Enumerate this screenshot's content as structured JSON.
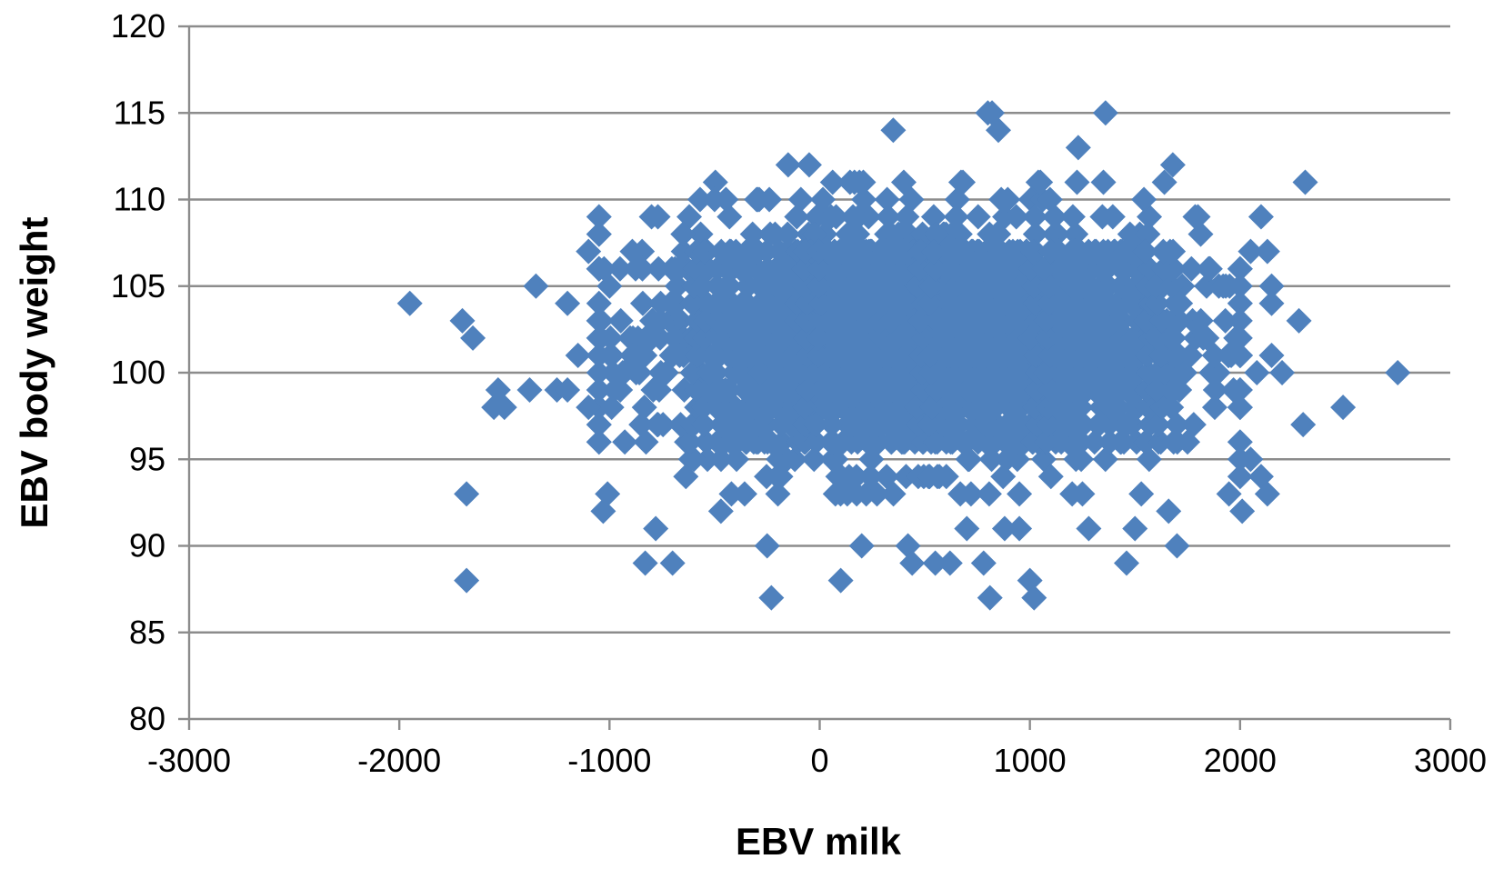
{
  "chart_data": {
    "type": "scatter",
    "title": "",
    "xlabel": "EBV milk",
    "ylabel": "EBV body weight",
    "xlim": [
      -3000,
      3000
    ],
    "ylim": [
      80,
      120
    ],
    "x_ticks": [
      -3000,
      -2000,
      -1000,
      0,
      1000,
      2000,
      3000
    ],
    "y_ticks": [
      80,
      85,
      90,
      95,
      100,
      105,
      110,
      115,
      120
    ],
    "grid": "horizontal",
    "legend": "none",
    "marker": "diamond",
    "marker_color": "#4f81bd",
    "point_count": 2000,
    "core_cloud": {
      "x_range": [
        -900,
        1850
      ],
      "y_range": [
        94,
        110
      ]
    },
    "outlier_points": [
      {
        "x": -1950,
        "y": 104
      },
      {
        "x": -1700,
        "y": 103
      },
      {
        "x": -1650,
        "y": 102
      },
      {
        "x": -1680,
        "y": 93
      },
      {
        "x": -1680,
        "y": 88
      },
      {
        "x": -1550,
        "y": 98
      },
      {
        "x": -1530,
        "y": 99
      },
      {
        "x": -1500,
        "y": 98
      },
      {
        "x": -1380,
        "y": 99
      },
      {
        "x": -1350,
        "y": 105
      },
      {
        "x": -1250,
        "y": 99
      },
      {
        "x": -1200,
        "y": 99
      },
      {
        "x": -1200,
        "y": 104
      },
      {
        "x": -1100,
        "y": 107
      },
      {
        "x": -1150,
        "y": 101
      },
      {
        "x": -1100,
        "y": 98
      },
      {
        "x": -1030,
        "y": 92
      },
      {
        "x": -1050,
        "y": 96
      },
      {
        "x": -1000,
        "y": 105
      },
      {
        "x": -950,
        "y": 106
      },
      {
        "x": -930,
        "y": 100
      },
      {
        "x": -800,
        "y": 109
      },
      {
        "x": -780,
        "y": 91
      },
      {
        "x": -830,
        "y": 89
      },
      {
        "x": -700,
        "y": 89
      },
      {
        "x": -650,
        "y": 108
      },
      {
        "x": -500,
        "y": 110
      },
      {
        "x": -470,
        "y": 92
      },
      {
        "x": -300,
        "y": 110
      },
      {
        "x": -250,
        "y": 90
      },
      {
        "x": -230,
        "y": 87
      },
      {
        "x": -150,
        "y": 112
      },
      {
        "x": -50,
        "y": 112
      },
      {
        "x": 100,
        "y": 88
      },
      {
        "x": 200,
        "y": 90
      },
      {
        "x": 350,
        "y": 114
      },
      {
        "x": 400,
        "y": 111
      },
      {
        "x": 420,
        "y": 90
      },
      {
        "x": 440,
        "y": 89
      },
      {
        "x": 550,
        "y": 89
      },
      {
        "x": 620,
        "y": 89
      },
      {
        "x": 700,
        "y": 91
      },
      {
        "x": 780,
        "y": 89
      },
      {
        "x": 800,
        "y": 115
      },
      {
        "x": 820,
        "y": 115
      },
      {
        "x": 850,
        "y": 114
      },
      {
        "x": 810,
        "y": 87
      },
      {
        "x": 880,
        "y": 91
      },
      {
        "x": 950,
        "y": 91
      },
      {
        "x": 950,
        "y": 93
      },
      {
        "x": 1000,
        "y": 88
      },
      {
        "x": 1020,
        "y": 87
      },
      {
        "x": 1050,
        "y": 111
      },
      {
        "x": 1100,
        "y": 94
      },
      {
        "x": 1230,
        "y": 113
      },
      {
        "x": 1250,
        "y": 93
      },
      {
        "x": 1280,
        "y": 91
      },
      {
        "x": 1350,
        "y": 111
      },
      {
        "x": 1360,
        "y": 115
      },
      {
        "x": 1460,
        "y": 89
      },
      {
        "x": 1500,
        "y": 91
      },
      {
        "x": 1530,
        "y": 93
      },
      {
        "x": 1640,
        "y": 111
      },
      {
        "x": 1680,
        "y": 112
      },
      {
        "x": 1660,
        "y": 92
      },
      {
        "x": 1700,
        "y": 90
      },
      {
        "x": 1750,
        "y": 96
      },
      {
        "x": 1850,
        "y": 106
      },
      {
        "x": 1950,
        "y": 105
      },
      {
        "x": 1980,
        "y": 102
      },
      {
        "x": 2000,
        "y": 98
      },
      {
        "x": 2010,
        "y": 92
      },
      {
        "x": 2050,
        "y": 95
      },
      {
        "x": 2050,
        "y": 107
      },
      {
        "x": 2080,
        "y": 100
      },
      {
        "x": 2100,
        "y": 109
      },
      {
        "x": 2100,
        "y": 94
      },
      {
        "x": 2130,
        "y": 107
      },
      {
        "x": 2150,
        "y": 105
      },
      {
        "x": 2150,
        "y": 104
      },
      {
        "x": 2130,
        "y": 93
      },
      {
        "x": 2150,
        "y": 101
      },
      {
        "x": 2200,
        "y": 100
      },
      {
        "x": 2280,
        "y": 103
      },
      {
        "x": 2300,
        "y": 97
      },
      {
        "x": 2310,
        "y": 111
      },
      {
        "x": 2490,
        "y": 98
      },
      {
        "x": 2750,
        "y": 100
      }
    ]
  }
}
